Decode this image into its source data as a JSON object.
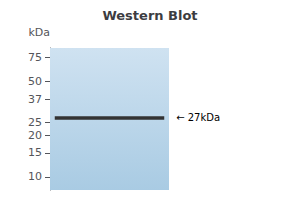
{
  "chart_data": {
    "type": "band",
    "title": "Western Blot",
    "ylabel": "kDa",
    "values": [
      27
    ],
    "heights": [
      1.6
    ],
    "value_labels": [
      "← 27kDa"
    ],
    "color": "#333333",
    "log": "y",
    "ylim": [
      8,
      88
    ],
    "yticks": [
      10,
      15,
      20,
      25,
      37,
      50,
      75
    ],
    "grid": false
  }
}
